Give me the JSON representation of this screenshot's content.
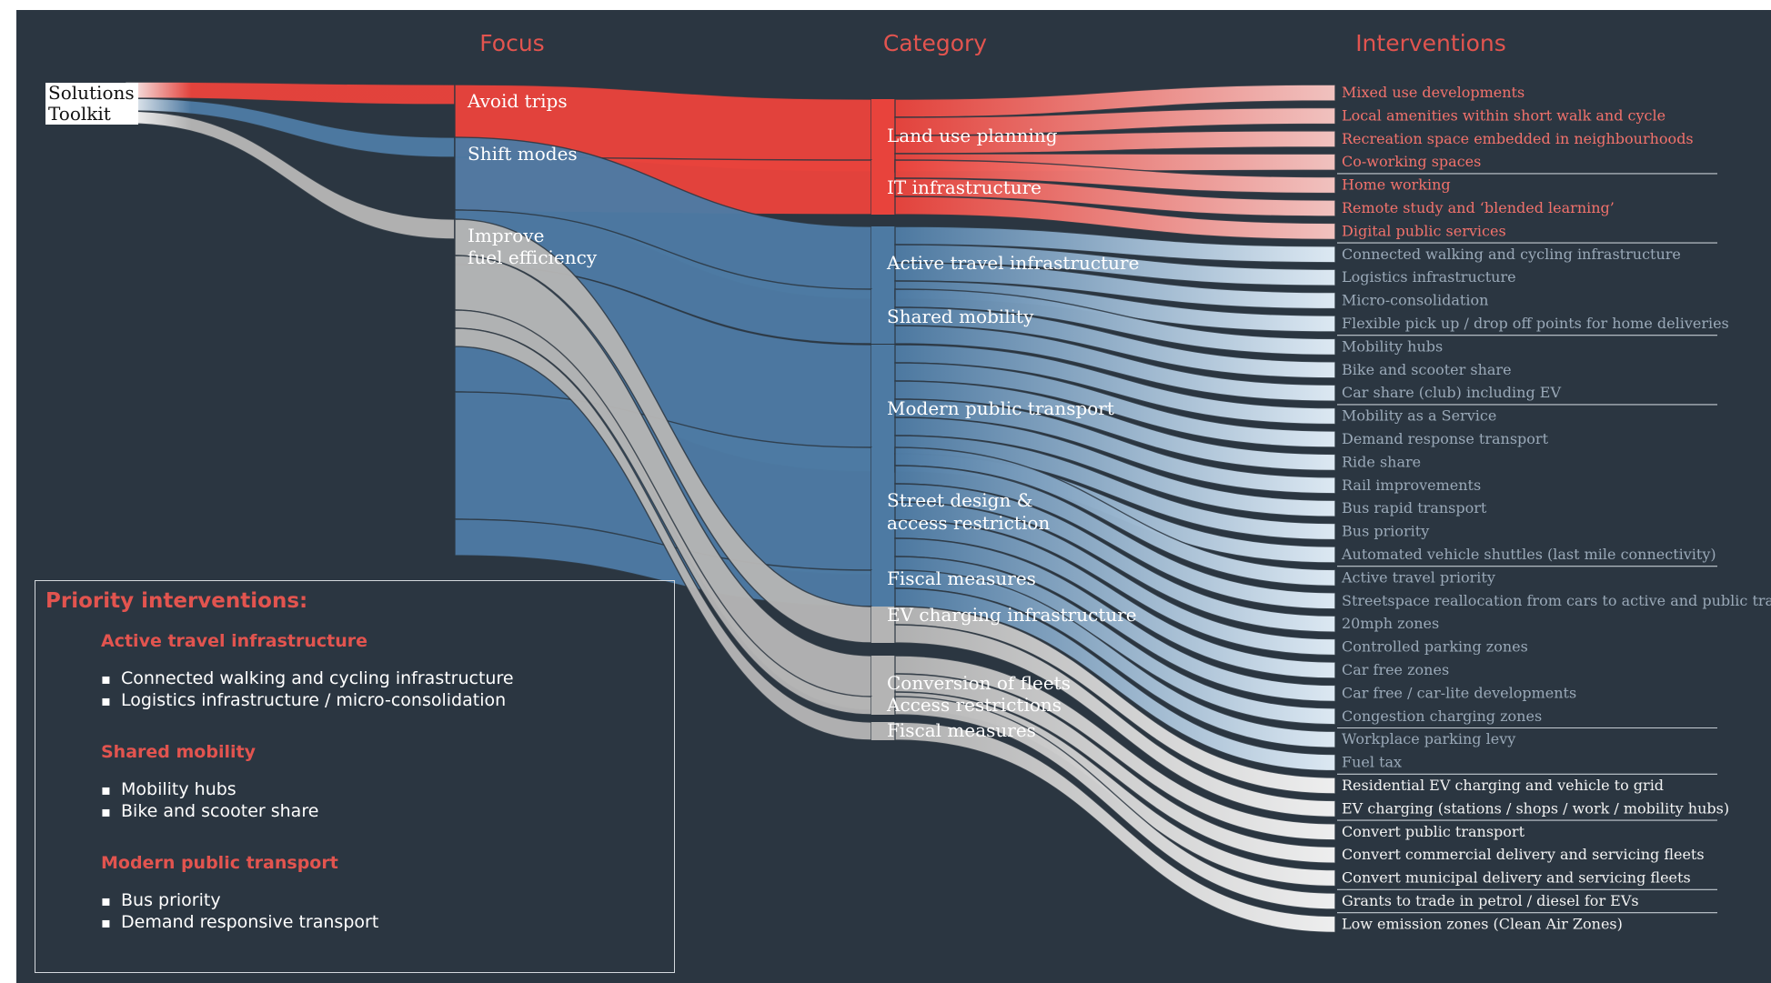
{
  "headers": {
    "focus": "Focus",
    "category": "Category",
    "interventions": "Interventions"
  },
  "root": {
    "line1": "Solutions",
    "line2": "Toolkit"
  },
  "focus": [
    {
      "id": "avoid",
      "label": [
        "Avoid trips"
      ],
      "color": "#e8433c"
    },
    {
      "id": "shift",
      "label": [
        "Shift modes"
      ],
      "color": "#4d7aa3"
    },
    {
      "id": "improve",
      "label": [
        "Improve",
        "fuel efficiency"
      ],
      "color": "#b4b4b4"
    }
  ],
  "categories": [
    {
      "id": "landuse",
      "label": [
        "Land use planning"
      ],
      "focus": "avoid"
    },
    {
      "id": "it",
      "label": [
        "IT infrastructure"
      ],
      "focus": "avoid"
    },
    {
      "id": "active",
      "label": [
        "Active travel infrastructure"
      ],
      "focus": "shift"
    },
    {
      "id": "shared",
      "label": [
        "Shared mobility"
      ],
      "focus": "shift"
    },
    {
      "id": "modern",
      "label": [
        "Modern public transport"
      ],
      "focus": "shift"
    },
    {
      "id": "street",
      "label": [
        "Street design &",
        "access restriction"
      ],
      "focus": "shift"
    },
    {
      "id": "fiscal1",
      "label": [
        "Fiscal measures"
      ],
      "focus": "shift"
    },
    {
      "id": "evcharge",
      "label": [
        "EV charging infrastructure"
      ],
      "focus": "improve"
    },
    {
      "id": "fleets",
      "label": [
        "Conversion of fleets"
      ],
      "focus": "improve"
    },
    {
      "id": "access",
      "label": [
        "Access restrictions"
      ],
      "focus": "improve"
    },
    {
      "id": "fiscal2",
      "label": [
        "Fiscal measures"
      ],
      "focus": "improve"
    }
  ],
  "interventions": [
    {
      "label": "Mixed use developments",
      "category": "landuse"
    },
    {
      "label": "Local amenities within short walk and cycle",
      "category": "landuse"
    },
    {
      "label": "Recreation space embedded in neighbourhoods",
      "category": "landuse"
    },
    {
      "label": "Co-working spaces",
      "category": "landuse"
    },
    {
      "label": "Home working",
      "category": "it"
    },
    {
      "label": "Remote study and ‘blended learning’",
      "category": "it"
    },
    {
      "label": "Digital public services",
      "category": "it"
    },
    {
      "label": "Connected walking and cycling infrastructure",
      "category": "active"
    },
    {
      "label": "Logistics infrastructure",
      "category": "active"
    },
    {
      "label": "Micro-consolidation",
      "category": "active"
    },
    {
      "label": "Flexible pick up / drop off points for home deliveries",
      "category": "active"
    },
    {
      "label": "Mobility hubs",
      "category": "shared"
    },
    {
      "label": "Bike and scooter share",
      "category": "shared"
    },
    {
      "label": "Car share (club) including EV",
      "category": "shared"
    },
    {
      "label": "Mobility as a Service",
      "category": "modern"
    },
    {
      "label": "Demand response transport",
      "category": "modern"
    },
    {
      "label": "Ride share",
      "category": "modern"
    },
    {
      "label": "Rail improvements",
      "category": "modern"
    },
    {
      "label": "Bus rapid transport",
      "category": "modern"
    },
    {
      "label": "Bus priority",
      "category": "modern"
    },
    {
      "label": "Automated vehicle shuttles (last mile connectivity)",
      "category": "modern"
    },
    {
      "label": "Active travel priority",
      "category": "street"
    },
    {
      "label": "Streetspace reallocation from cars to active and public transport",
      "category": "street"
    },
    {
      "label": "20mph zones",
      "category": "street"
    },
    {
      "label": "Controlled parking zones",
      "category": "street"
    },
    {
      "label": "Car free zones",
      "category": "street"
    },
    {
      "label": "Car free / car-lite developments",
      "category": "street"
    },
    {
      "label": "Congestion charging zones",
      "category": "street"
    },
    {
      "label": "Workplace parking levy",
      "category": "fiscal1"
    },
    {
      "label": "Fuel tax",
      "category": "fiscal1"
    },
    {
      "label": "Residential EV charging and vehicle to grid",
      "category": "evcharge"
    },
    {
      "label": "EV charging (stations / shops / work / mobility hubs)",
      "category": "evcharge"
    },
    {
      "label": "Convert public transport",
      "category": "fleets"
    },
    {
      "label": "Convert commercial delivery and servicing fleets",
      "category": "fleets"
    },
    {
      "label": "Convert municipal delivery and servicing fleets",
      "category": "fleets"
    },
    {
      "label": "Grants to trade in petrol / diesel for EVs",
      "category": "access"
    },
    {
      "label": "Low emission zones (Clean Air Zones)",
      "category": "fiscal2"
    }
  ],
  "colors": {
    "avoid_text": "#f2726c",
    "shift_text": "#9aa9b8",
    "improve_text": "#f2f2f2",
    "header": "#e2544f",
    "background": "#2b3641"
  },
  "priority": {
    "title": "Priority interventions:",
    "groups": [
      {
        "title": "Active travel infrastructure",
        "items": [
          "Connected walking and cycling infrastructure",
          "Logistics infrastructure / micro-consolidation"
        ]
      },
      {
        "title": "Shared mobility",
        "items": [
          "Mobility hubs",
          "Bike and scooter share"
        ]
      },
      {
        "title": "Modern public transport",
        "items": [
          "Bus priority",
          "Demand responsive transport"
        ]
      }
    ]
  }
}
